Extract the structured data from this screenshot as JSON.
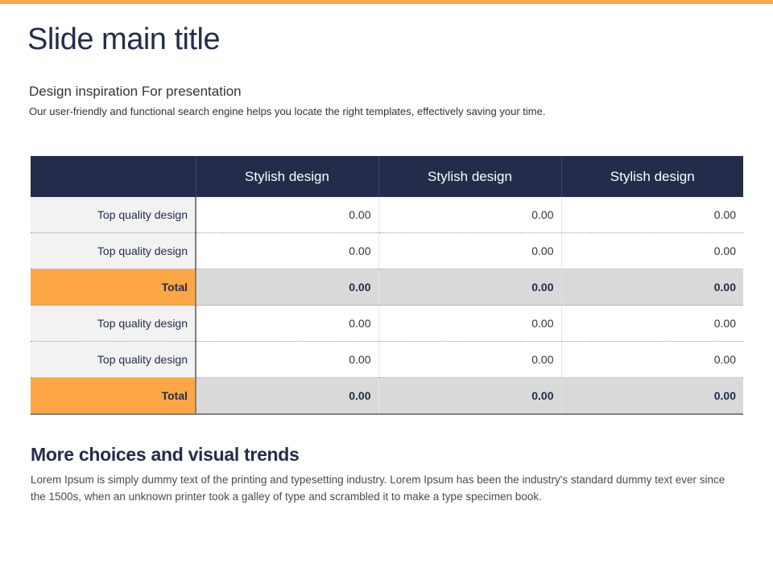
{
  "slide": {
    "title": "Slide main title",
    "subtitle": "Design inspiration For presentation",
    "description": "Our user-friendly and functional search engine helps you locate the right templates, effectively saving your time."
  },
  "table": {
    "header": [
      "",
      "Stylish design",
      "Stylish design",
      "Stylish design"
    ],
    "rows": [
      {
        "label": "Top quality design",
        "values": [
          "0.00",
          "0.00",
          "0.00"
        ],
        "total": false
      },
      {
        "label": "Top quality design",
        "values": [
          "0.00",
          "0.00",
          "0.00"
        ],
        "total": false
      },
      {
        "label": "Total",
        "values": [
          "0.00",
          "0.00",
          "0.00"
        ],
        "total": true
      },
      {
        "label": "Top quality design",
        "values": [
          "0.00",
          "0.00",
          "0.00"
        ],
        "total": false
      },
      {
        "label": "Top quality design",
        "values": [
          "0.00",
          "0.00",
          "0.00"
        ],
        "total": false
      },
      {
        "label": "Total",
        "values": [
          "0.00",
          "0.00",
          "0.00"
        ],
        "total": true
      }
    ]
  },
  "section": {
    "heading": "More choices and visual trends",
    "body": "Lorem Ipsum is simply dummy text of the printing and typesetting industry. Lorem Ipsum has been the industry's standard dummy text ever since the 1500s, when an unknown printer took a galley of type and scrambled it to make a type specimen book."
  },
  "colors": {
    "accent": "#fca646",
    "navy": "#232d4b",
    "total_cell": "#d9d9d9",
    "label_cell": "#f2f2f2"
  }
}
